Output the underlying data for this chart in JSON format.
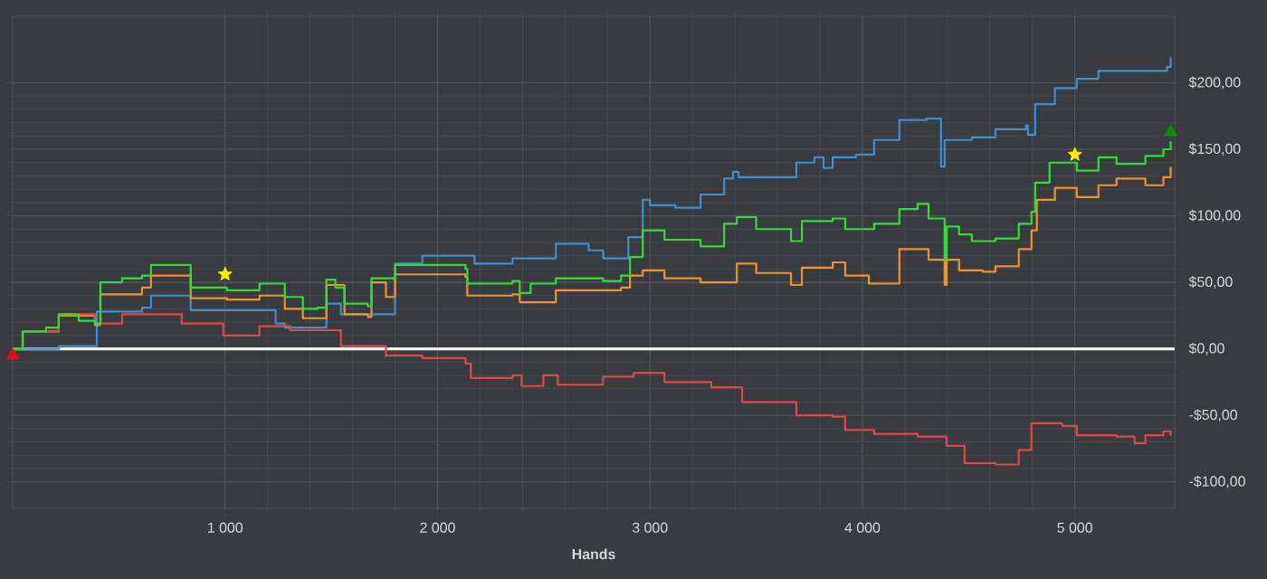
{
  "chart_data": {
    "type": "step",
    "xlabel": "Hands",
    "xlim": [
      0,
      5470
    ],
    "ylim": [
      -120,
      250
    ],
    "xticks": [
      {
        "value": 1000,
        "label": "1 000"
      },
      {
        "value": 2000,
        "label": "2 000"
      },
      {
        "value": 3000,
        "label": "3 000"
      },
      {
        "value": 4000,
        "label": "4 000"
      },
      {
        "value": 5000,
        "label": "5 000"
      }
    ],
    "yticks": [
      {
        "value": -100,
        "label": "-$100,00"
      },
      {
        "value": -50,
        "label": "-$50,00"
      },
      {
        "value": 0,
        "label": "$0,00"
      },
      {
        "value": 50,
        "label": "$50,00"
      },
      {
        "value": 100,
        "label": "$100,00"
      },
      {
        "value": 150,
        "label": "$150,00"
      },
      {
        "value": 200,
        "label": "$200,00"
      }
    ],
    "grid": true,
    "ref_lines": [
      {
        "axis": "y",
        "value": 0,
        "color": "#f0f0f0"
      }
    ],
    "series": [
      {
        "color": "#3d8fd1",
        "x": [
          0,
          47,
          217,
          396,
          609,
          651,
          838,
          1238,
          1281,
          1451,
          1477,
          1545,
          1800,
          1928,
          2174,
          2353,
          2557,
          2711,
          2780,
          2898,
          2966,
          3000,
          3119,
          3238,
          3349,
          3391,
          3417,
          3689,
          3774,
          3817,
          3860,
          3970,
          4055,
          4174,
          4302,
          4370,
          4387,
          4515,
          4626,
          4770,
          4779,
          4813,
          4906,
          5009,
          5111,
          5434,
          5451
        ],
        "values": [
          0,
          0,
          2,
          28,
          31,
          40,
          29,
          19,
          16,
          16,
          34,
          26,
          64,
          70,
          64,
          68,
          79,
          74,
          68,
          84,
          112,
          108,
          106,
          116,
          128,
          133,
          129,
          140,
          144,
          136,
          144,
          146,
          157,
          172,
          173,
          137,
          157,
          159,
          165,
          168,
          161,
          184,
          196,
          203,
          209,
          212,
          219
        ]
      },
      {
        "color": "#f0922e",
        "x": [
          0,
          47,
          217,
          387,
          413,
          609,
          651,
          838,
          1009,
          1162,
          1281,
          1366,
          1434,
          1477,
          1562,
          1672,
          1689,
          1757,
          1800,
          2132,
          2140,
          2353,
          2387,
          2557,
          2864,
          2906,
          2966,
          3068,
          3238,
          3409,
          3500,
          3664,
          3715,
          3860,
          3919,
          4030,
          4174,
          4311,
          4387,
          4396,
          4455,
          4566,
          4626,
          4736,
          4796,
          4821,
          4906,
          5009,
          5111,
          5196,
          5332,
          5417,
          5451
        ],
        "values": [
          0,
          13,
          25,
          18,
          41,
          46,
          55,
          38,
          37,
          40,
          30,
          23,
          23,
          48,
          26,
          24,
          50,
          39,
          56,
          54,
          40,
          41,
          35,
          44,
          46,
          55,
          59,
          53,
          50,
          64,
          57,
          48,
          61,
          65,
          55,
          49,
          75,
          67,
          48,
          67,
          59,
          58,
          62,
          75,
          89,
          112,
          121,
          114,
          123,
          128,
          123,
          129,
          137
        ]
      },
      {
        "color": "#e04848",
        "x": [
          0,
          47,
          217,
          387,
          515,
          796,
          991,
          1162,
          1306,
          1451,
          1545,
          1757,
          1928,
          2132,
          2157,
          2353,
          2396,
          2498,
          2566,
          2779,
          2923,
          3068,
          3289,
          3434,
          3689,
          3860,
          3919,
          4055,
          4260,
          4396,
          4481,
          4626,
          4736,
          4796,
          4940,
          5009,
          5196,
          5281,
          5332,
          5417,
          5451
        ],
        "values": [
          0,
          13,
          26,
          19,
          26,
          19,
          10,
          17,
          14,
          14,
          2,
          -5,
          -7,
          -11,
          -22,
          -20,
          -28,
          -20,
          -27,
          -21,
          -18,
          -25,
          -29,
          -40,
          -50,
          -51,
          -61,
          -64,
          -66,
          -73,
          -86,
          -87,
          -76,
          -56,
          -58,
          -65,
          -66,
          -71,
          -65,
          -62,
          -65
        ]
      },
      {
        "color": "#33dd33",
        "x": [
          0,
          47,
          157,
          217,
          311,
          387,
          413,
          515,
          609,
          651,
          838,
          1009,
          1162,
          1281,
          1366,
          1434,
          1477,
          1519,
          1562,
          1672,
          1689,
          1800,
          2132,
          2140,
          2353,
          2387,
          2438,
          2557,
          2779,
          2864,
          2906,
          2966,
          3068,
          3238,
          3349,
          3409,
          3500,
          3664,
          3715,
          3860,
          3919,
          4055,
          4174,
          4260,
          4311,
          4387,
          4396,
          4455,
          4515,
          4626,
          4736,
          4796,
          4813,
          4881,
          5009,
          5111,
          5196,
          5332,
          5417,
          5451
        ],
        "values": [
          0,
          13,
          16,
          26,
          21,
          19,
          50,
          53,
          55,
          63,
          46,
          44,
          49,
          39,
          30,
          31,
          52,
          46,
          34,
          32,
          53,
          63,
          60,
          49,
          51,
          42,
          49,
          53,
          51,
          55,
          69,
          89,
          82,
          77,
          94,
          99,
          90,
          81,
          96,
          98,
          90,
          94,
          105,
          109,
          98,
          67,
          92,
          86,
          81,
          83,
          94,
          103,
          125,
          140,
          134,
          144,
          139,
          145,
          150,
          156
        ]
      },
      {
        "type": "scatter",
        "marker": "star",
        "color": "#ffee00",
        "x": [
          1000,
          5000
        ],
        "values": [
          56,
          146
        ]
      },
      {
        "type": "scatter",
        "marker": "triangle",
        "color": "#dd1111",
        "x": [
          0
        ],
        "values": [
          -5
        ]
      },
      {
        "type": "scatter",
        "marker": "triangle",
        "color": "#118811",
        "x": [
          5451
        ],
        "values": [
          163
        ]
      }
    ]
  }
}
